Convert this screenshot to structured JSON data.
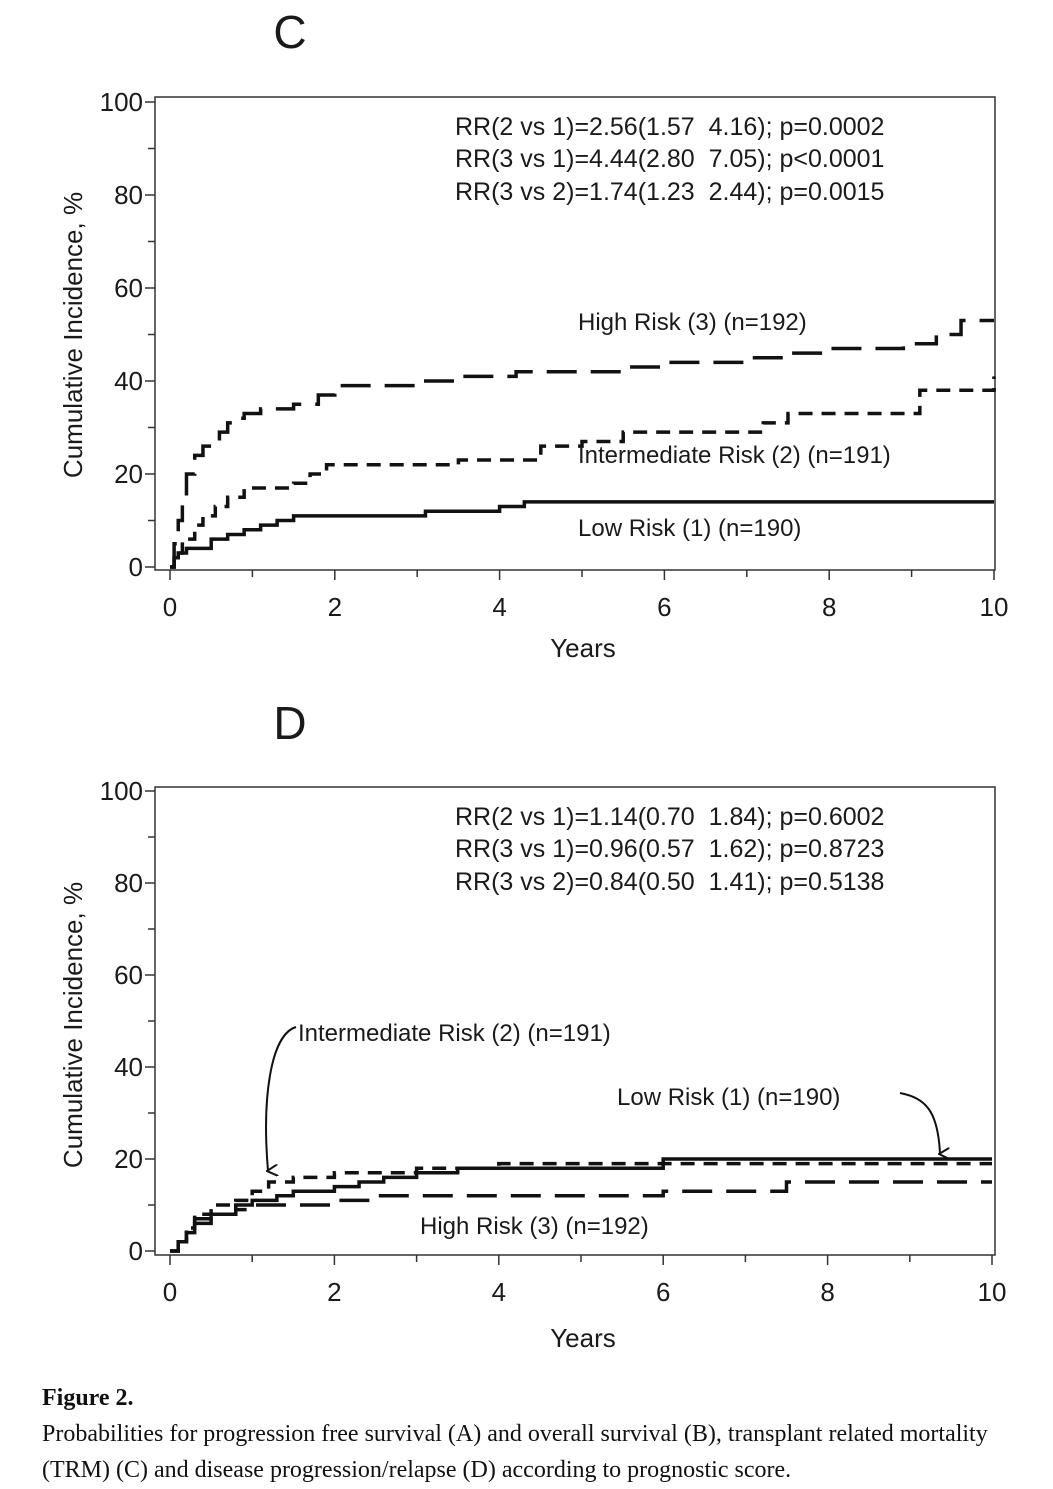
{
  "chart_data": [
    {
      "type": "line",
      "panel_label": "C",
      "title": "",
      "xlabel": "Years",
      "ylabel": "Cumulative Incidence, %",
      "xlim": [
        0,
        10
      ],
      "ylim": [
        0,
        100
      ],
      "x_ticks": [
        "0",
        "2",
        "4",
        "6",
        "8",
        "10"
      ],
      "y_ticks": [
        "0",
        "20",
        "40",
        "60",
        "80",
        "100"
      ],
      "grid": false,
      "stats": [
        "RR(2 vs 1)=2.56(1.57  4.16); p=0.0002",
        "RR(3 vs 1)=4.44(2.80  7.05); p<0.0001",
        "RR(3 vs 2)=1.74(1.23  2.44); p=0.0015"
      ],
      "series": [
        {
          "name": "High Risk (3) (n=192)",
          "dash": "long",
          "x": [
            0,
            0.05,
            0.1,
            0.15,
            0.2,
            0.3,
            0.4,
            0.5,
            0.6,
            0.7,
            0.8,
            0.9,
            1.1,
            1.5,
            1.8,
            2.0,
            3.0,
            3.5,
            4.2,
            5.0,
            5.5,
            6.0,
            7.0,
            7.5,
            8.0,
            8.9,
            9.3,
            9.6,
            10.0
          ],
          "y": [
            0,
            5,
            10,
            15,
            20,
            24,
            26,
            27,
            29,
            31,
            32,
            33,
            34,
            35,
            37,
            39,
            40,
            41,
            42,
            42,
            43,
            44,
            45,
            46,
            47,
            48,
            50,
            53,
            53
          ]
        },
        {
          "name": "Intermediate Risk (2) (n=191)",
          "dash": "short",
          "x": [
            0,
            0.05,
            0.15,
            0.3,
            0.4,
            0.55,
            0.7,
            0.9,
            1.2,
            1.5,
            1.7,
            1.9,
            3.5,
            4.5,
            5.0,
            5.5,
            7.2,
            7.5,
            8.9,
            9.1,
            10.0
          ],
          "y": [
            0,
            3,
            6,
            9,
            11,
            13,
            15,
            17,
            17,
            18,
            20,
            22,
            23,
            26,
            27,
            29,
            31,
            33,
            33,
            38,
            41
          ]
        },
        {
          "name": "Low Risk (1) (n=190)",
          "dash": "solid",
          "x": [
            0,
            0.05,
            0.1,
            0.2,
            0.3,
            0.5,
            0.7,
            0.9,
            1.1,
            1.3,
            1.5,
            2.0,
            2.8,
            3.1,
            4.0,
            4.3,
            10.0
          ],
          "y": [
            0,
            2,
            3,
            4,
            4,
            6,
            7,
            8,
            9,
            10,
            11,
            11,
            11,
            12,
            13,
            14,
            14
          ]
        }
      ],
      "labels": {
        "high": "High Risk (3) (n=192)",
        "intermediate": "Intermediate Risk (2) (n=191)",
        "low": "Low Risk (1) (n=190)"
      }
    },
    {
      "type": "line",
      "panel_label": "D",
      "title": "",
      "xlabel": "Years",
      "ylabel": "Cumulative Incidence, %",
      "xlim": [
        0,
        10
      ],
      "ylim": [
        0,
        100
      ],
      "x_ticks": [
        "0",
        "2",
        "4",
        "6",
        "8",
        "10"
      ],
      "y_ticks": [
        "0",
        "20",
        "40",
        "60",
        "80",
        "100"
      ],
      "grid": false,
      "stats": [
        "RR(2 vs 1)=1.14(0.70  1.84); p=0.6002",
        "RR(3 vs 1)=0.96(0.57  1.62); p=0.8723",
        "RR(3 vs 2)=0.84(0.50  1.41); p=0.5138"
      ],
      "series": [
        {
          "name": "Intermediate Risk (2) (n=191)",
          "dash": "short",
          "x": [
            0,
            0.1,
            0.2,
            0.3,
            0.5,
            0.8,
            1.0,
            1.2,
            1.5,
            2.0,
            2.5,
            3.0,
            3.5,
            4.0,
            10.0
          ],
          "y": [
            0,
            2,
            5,
            8,
            10,
            11,
            13,
            15,
            16,
            17,
            17,
            18,
            18,
            19,
            19
          ]
        },
        {
          "name": "Low Risk (1) (n=190)",
          "dash": "solid",
          "x": [
            0,
            0.1,
            0.2,
            0.3,
            0.5,
            0.8,
            1.0,
            1.3,
            1.5,
            2.0,
            2.3,
            2.6,
            3.0,
            3.5,
            6.0,
            10.0
          ],
          "y": [
            0,
            2,
            4,
            6,
            8,
            10,
            11,
            12,
            13,
            14,
            15,
            16,
            17,
            18,
            20,
            20
          ]
        },
        {
          "name": "High Risk (3) (n=192)",
          "dash": "long",
          "x": [
            0,
            0.1,
            0.2,
            0.3,
            0.5,
            0.8,
            1.0,
            1.2,
            2.0,
            2.5,
            6.0,
            7.5,
            10.0
          ],
          "y": [
            0,
            2,
            5,
            7,
            8,
            9,
            10,
            10,
            11,
            12,
            13,
            15,
            15
          ]
        }
      ],
      "labels": {
        "high": "High Risk (3) (n=192)",
        "intermediate": "Intermediate Risk (2) (n=191)",
        "low": "Low Risk (1) (n=190)"
      }
    }
  ],
  "caption": {
    "title": "Figure 2.",
    "text": "Probabilities for progression free survival (A) and overall survival (B), transplant related mortality (TRM) (C) and disease progression/relapse (D) according to prognostic score."
  }
}
